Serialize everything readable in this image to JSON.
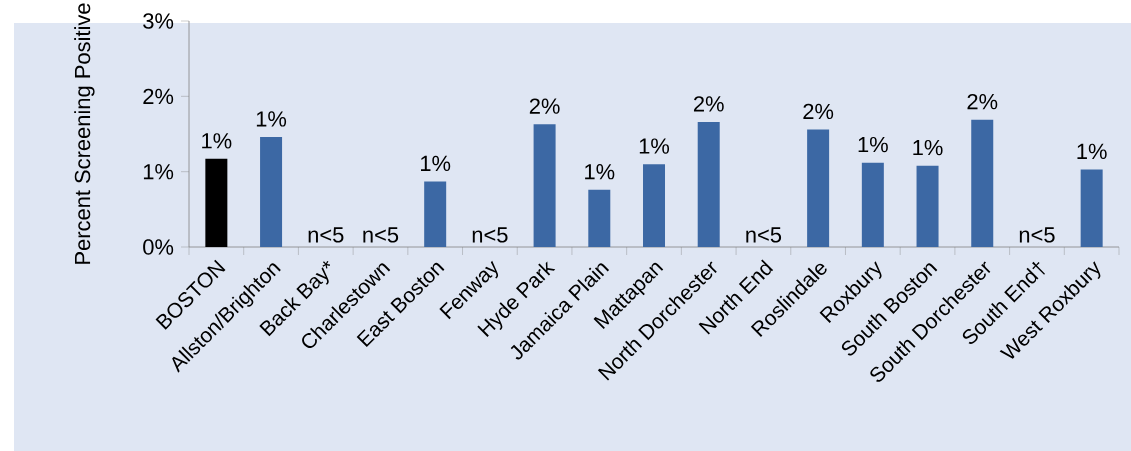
{
  "chart_data": {
    "type": "bar",
    "ylabel": "Percent Screening Positive",
    "categories": [
      "BOSTON",
      "Allston/Brighton",
      "Back Bay*",
      "Charlestown",
      "East Boston",
      "Fenway",
      "Hyde Park",
      "Jamaica Plain",
      "Mattapan",
      "North Dorchester",
      "North End",
      "Roslindale",
      "Roxbury",
      "South Boston",
      "South Dorchester",
      "South End†",
      "West Roxbury"
    ],
    "values": [
      1.17,
      1.46,
      null,
      null,
      0.87,
      null,
      1.63,
      0.76,
      1.1,
      1.66,
      null,
      1.56,
      1.12,
      1.08,
      1.69,
      null,
      1.03
    ],
    "colors": [
      "#000000",
      "#3c68a4",
      "#3c68a4",
      "#3c68a4",
      "#3c68a4",
      "#3c68a4",
      "#3c68a4",
      "#3c68a4",
      "#3c68a4",
      "#3c68a4",
      "#3c68a4",
      "#3c68a4",
      "#3c68a4",
      "#3c68a4",
      "#3c68a4",
      "#3c68a4",
      "#3c68a4"
    ],
    "value_labels": [
      "1%",
      "1%",
      "n<5",
      "n<5",
      "1%",
      "n<5",
      "2%",
      "1%",
      "1%",
      "2%",
      "n<5",
      "2%",
      "1%",
      "1%",
      "2%",
      "n<5",
      "1%"
    ],
    "ylim": [
      0,
      3
    ],
    "yticks": [
      {
        "value": 0,
        "label": "0%"
      },
      {
        "value": 1,
        "label": "1%"
      },
      {
        "value": 2,
        "label": "2%"
      },
      {
        "value": 3,
        "label": "3%"
      }
    ],
    "grid": false
  }
}
